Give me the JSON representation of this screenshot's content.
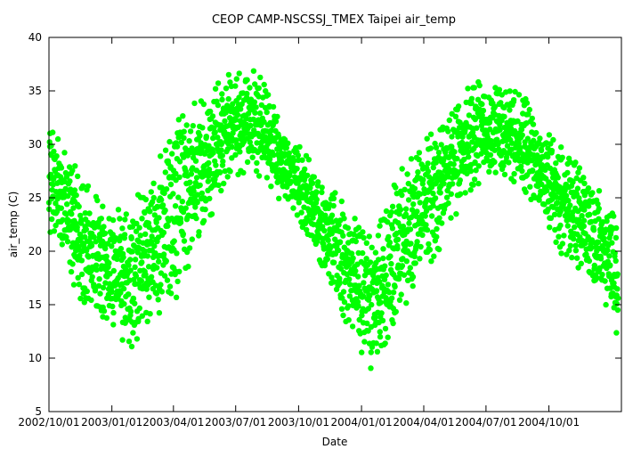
{
  "chart_data": {
    "type": "scatter",
    "title": "CEOP CAMP-NSCSSJ_TMEX Taipei  air_temp",
    "xlabel": "Date",
    "ylabel": "air_temp (C)",
    "xlim": [
      "2002-10-01",
      "2005-01-15"
    ],
    "ylim": [
      5,
      40
    ],
    "x_ticks": [
      "2002/10/01",
      "2003/01/01",
      "2003/04/01",
      "2003/07/01",
      "2003/10/01",
      "2004/01/01",
      "2004/04/01",
      "2004/07/01",
      "2004/10/01"
    ],
    "y_ticks": [
      5,
      10,
      15,
      20,
      25,
      30,
      35,
      40
    ],
    "grid": false,
    "legend": "none",
    "marker_color": "#00ff00",
    "series": [
      {
        "x": [
          "2002-10-01",
          "2002-10-15",
          "2002-11-01",
          "2002-11-15",
          "2002-12-01",
          "2002-12-15",
          "2003-01-01",
          "2003-01-15",
          "2003-02-01",
          "2003-02-15",
          "2003-03-01",
          "2003-03-15",
          "2003-04-01",
          "2003-04-15",
          "2003-05-01",
          "2003-05-15",
          "2003-06-01",
          "2003-06-15",
          "2003-07-01",
          "2003-07-15",
          "2003-08-01",
          "2003-08-15",
          "2003-09-01",
          "2003-09-15",
          "2003-10-01",
          "2003-10-15",
          "2003-11-01",
          "2003-11-15",
          "2003-12-01",
          "2003-12-15",
          "2004-01-01",
          "2004-01-15",
          "2004-02-01",
          "2004-02-15",
          "2004-03-01",
          "2004-03-15",
          "2004-04-01",
          "2004-04-15",
          "2004-05-01",
          "2004-05-15",
          "2004-06-01",
          "2004-06-15",
          "2004-07-01",
          "2004-07-15",
          "2004-08-01",
          "2004-08-15",
          "2004-09-01",
          "2004-09-15",
          "2004-10-01",
          "2004-10-15",
          "2004-11-01",
          "2004-11-15",
          "2004-12-01",
          "2004-12-15",
          "2005-01-01",
          "2005-01-10"
        ],
        "y_min": [
          21,
          20,
          18,
          15,
          14,
          13,
          12,
          11,
          11,
          12,
          13,
          14,
          15,
          17,
          19,
          21,
          24,
          26,
          27,
          27,
          27,
          26,
          25,
          24,
          23,
          21,
          19,
          17,
          14,
          12,
          10,
          9,
          10,
          12,
          14,
          16,
          18,
          19,
          21,
          23,
          25,
          26,
          27,
          27,
          27,
          26,
          25,
          24,
          22,
          20,
          19,
          18,
          16,
          15,
          14,
          11
        ],
        "y_max": [
          33,
          31,
          29,
          27,
          26,
          25,
          24,
          24,
          25,
          26,
          28,
          30,
          32,
          33,
          34,
          35,
          36,
          37,
          37,
          37,
          37,
          36,
          33,
          31,
          30,
          29,
          27,
          26,
          25,
          24,
          23,
          22,
          24,
          26,
          28,
          29,
          31,
          32,
          33,
          34,
          35,
          36,
          36,
          36,
          35,
          35,
          34,
          32,
          31,
          30,
          29,
          28,
          27,
          26,
          24,
          22
        ],
        "y_center": [
          27,
          25.5,
          23.5,
          21,
          20,
          19,
          18,
          17.5,
          18,
          19,
          20.5,
          22,
          23.5,
          25,
          26.5,
          28,
          30,
          31.5,
          32,
          32,
          32,
          31,
          29,
          27.5,
          26.5,
          25,
          23,
          21.5,
          19.5,
          18,
          16.5,
          15.5,
          17,
          19,
          21,
          22.5,
          24.5,
          25.5,
          27,
          28.5,
          30,
          31,
          31.5,
          31.5,
          31,
          30.5,
          29.5,
          28,
          26.5,
          25,
          24,
          23,
          21.5,
          20.5,
          19,
          16.5
        ]
      }
    ]
  }
}
